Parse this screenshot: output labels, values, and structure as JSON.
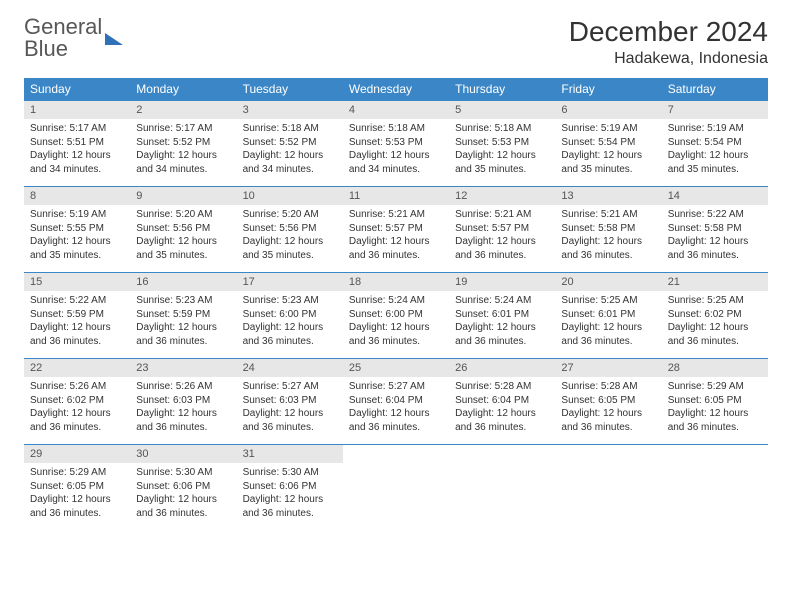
{
  "brand": {
    "word1": "General",
    "word2": "Blue"
  },
  "title": "December 2024",
  "location": "Hadakewa, Indonesia",
  "colors": {
    "header_bg": "#3b86c6",
    "header_text": "#ffffff",
    "daynum_bg": "#e7e7e7",
    "row_border": "#3b86c6",
    "brand_gray": "#585858",
    "brand_blue": "#2f71b8"
  },
  "weekdays": [
    "Sunday",
    "Monday",
    "Tuesday",
    "Wednesday",
    "Thursday",
    "Friday",
    "Saturday"
  ],
  "weeks": [
    [
      {
        "n": "1",
        "sr": "5:17 AM",
        "ss": "5:51 PM",
        "dl": "12 hours and 34 minutes."
      },
      {
        "n": "2",
        "sr": "5:17 AM",
        "ss": "5:52 PM",
        "dl": "12 hours and 34 minutes."
      },
      {
        "n": "3",
        "sr": "5:18 AM",
        "ss": "5:52 PM",
        "dl": "12 hours and 34 minutes."
      },
      {
        "n": "4",
        "sr": "5:18 AM",
        "ss": "5:53 PM",
        "dl": "12 hours and 34 minutes."
      },
      {
        "n": "5",
        "sr": "5:18 AM",
        "ss": "5:53 PM",
        "dl": "12 hours and 35 minutes."
      },
      {
        "n": "6",
        "sr": "5:19 AM",
        "ss": "5:54 PM",
        "dl": "12 hours and 35 minutes."
      },
      {
        "n": "7",
        "sr": "5:19 AM",
        "ss": "5:54 PM",
        "dl": "12 hours and 35 minutes."
      }
    ],
    [
      {
        "n": "8",
        "sr": "5:19 AM",
        "ss": "5:55 PM",
        "dl": "12 hours and 35 minutes."
      },
      {
        "n": "9",
        "sr": "5:20 AM",
        "ss": "5:56 PM",
        "dl": "12 hours and 35 minutes."
      },
      {
        "n": "10",
        "sr": "5:20 AM",
        "ss": "5:56 PM",
        "dl": "12 hours and 35 minutes."
      },
      {
        "n": "11",
        "sr": "5:21 AM",
        "ss": "5:57 PM",
        "dl": "12 hours and 36 minutes."
      },
      {
        "n": "12",
        "sr": "5:21 AM",
        "ss": "5:57 PM",
        "dl": "12 hours and 36 minutes."
      },
      {
        "n": "13",
        "sr": "5:21 AM",
        "ss": "5:58 PM",
        "dl": "12 hours and 36 minutes."
      },
      {
        "n": "14",
        "sr": "5:22 AM",
        "ss": "5:58 PM",
        "dl": "12 hours and 36 minutes."
      }
    ],
    [
      {
        "n": "15",
        "sr": "5:22 AM",
        "ss": "5:59 PM",
        "dl": "12 hours and 36 minutes."
      },
      {
        "n": "16",
        "sr": "5:23 AM",
        "ss": "5:59 PM",
        "dl": "12 hours and 36 minutes."
      },
      {
        "n": "17",
        "sr": "5:23 AM",
        "ss": "6:00 PM",
        "dl": "12 hours and 36 minutes."
      },
      {
        "n": "18",
        "sr": "5:24 AM",
        "ss": "6:00 PM",
        "dl": "12 hours and 36 minutes."
      },
      {
        "n": "19",
        "sr": "5:24 AM",
        "ss": "6:01 PM",
        "dl": "12 hours and 36 minutes."
      },
      {
        "n": "20",
        "sr": "5:25 AM",
        "ss": "6:01 PM",
        "dl": "12 hours and 36 minutes."
      },
      {
        "n": "21",
        "sr": "5:25 AM",
        "ss": "6:02 PM",
        "dl": "12 hours and 36 minutes."
      }
    ],
    [
      {
        "n": "22",
        "sr": "5:26 AM",
        "ss": "6:02 PM",
        "dl": "12 hours and 36 minutes."
      },
      {
        "n": "23",
        "sr": "5:26 AM",
        "ss": "6:03 PM",
        "dl": "12 hours and 36 minutes."
      },
      {
        "n": "24",
        "sr": "5:27 AM",
        "ss": "6:03 PM",
        "dl": "12 hours and 36 minutes."
      },
      {
        "n": "25",
        "sr": "5:27 AM",
        "ss": "6:04 PM",
        "dl": "12 hours and 36 minutes."
      },
      {
        "n": "26",
        "sr": "5:28 AM",
        "ss": "6:04 PM",
        "dl": "12 hours and 36 minutes."
      },
      {
        "n": "27",
        "sr": "5:28 AM",
        "ss": "6:05 PM",
        "dl": "12 hours and 36 minutes."
      },
      {
        "n": "28",
        "sr": "5:29 AM",
        "ss": "6:05 PM",
        "dl": "12 hours and 36 minutes."
      }
    ],
    [
      {
        "n": "29",
        "sr": "5:29 AM",
        "ss": "6:05 PM",
        "dl": "12 hours and 36 minutes."
      },
      {
        "n": "30",
        "sr": "5:30 AM",
        "ss": "6:06 PM",
        "dl": "12 hours and 36 minutes."
      },
      {
        "n": "31",
        "sr": "5:30 AM",
        "ss": "6:06 PM",
        "dl": "12 hours and 36 minutes."
      },
      null,
      null,
      null,
      null
    ]
  ],
  "labels": {
    "sunrise": "Sunrise:",
    "sunset": "Sunset:",
    "daylight": "Daylight:"
  }
}
